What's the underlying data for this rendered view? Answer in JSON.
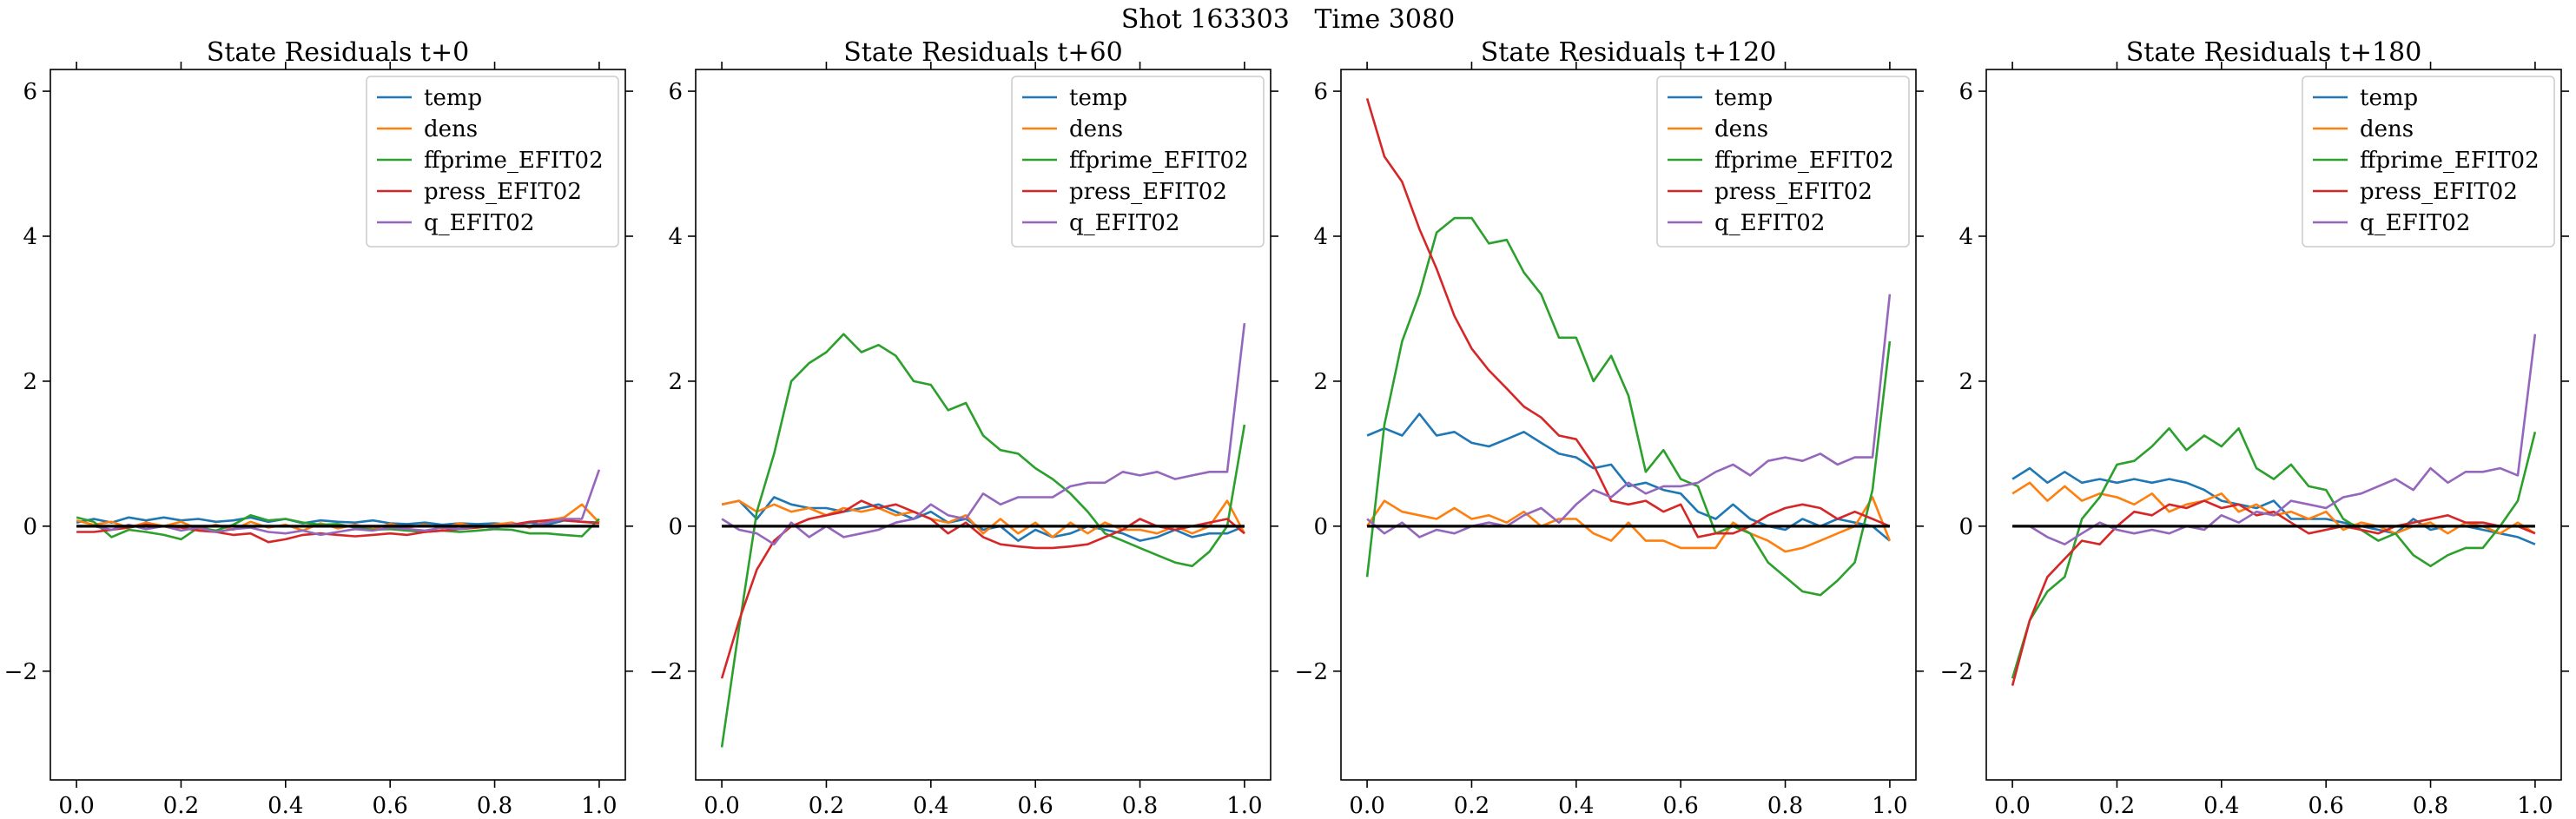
{
  "figure": {
    "title": "Shot 163303   Time 3080"
  },
  "colors": {
    "temp": "#1f77b4",
    "dens": "#ff7f0e",
    "ffprime_EFIT02": "#2ca02c",
    "press_EFIT02": "#d62728",
    "q_EFIT02": "#9467bd",
    "zero_line": "#000000"
  },
  "chart_data": [
    {
      "type": "line",
      "title": "State Residuals t+0",
      "xlim": [
        -0.05,
        1.05
      ],
      "ylim": [
        -3.5,
        6.3
      ],
      "xticks": [
        0.0,
        0.2,
        0.4,
        0.6,
        0.8,
        1.0
      ],
      "xtick_labels": [
        "0.0",
        "0.2",
        "0.4",
        "0.6",
        "0.8",
        "1.0"
      ],
      "yticks": [
        -2,
        0,
        2,
        4,
        6
      ],
      "ytick_labels": [
        "−2",
        "0",
        "2",
        "4",
        "6"
      ],
      "legend_position": "top-right",
      "x": [
        0.0,
        0.033,
        0.067,
        0.1,
        0.133,
        0.167,
        0.2,
        0.233,
        0.267,
        0.3,
        0.333,
        0.367,
        0.4,
        0.433,
        0.467,
        0.5,
        0.533,
        0.567,
        0.6,
        0.633,
        0.667,
        0.7,
        0.733,
        0.767,
        0.8,
        0.833,
        0.867,
        0.9,
        0.933,
        0.967,
        1.0
      ],
      "series": [
        {
          "name": "temp",
          "color": "#1f77b4",
          "values": [
            0.05,
            0.1,
            0.05,
            0.12,
            0.08,
            0.12,
            0.08,
            0.1,
            0.06,
            0.08,
            0.12,
            0.06,
            0.1,
            0.04,
            0.08,
            0.06,
            0.05,
            0.08,
            0.04,
            0.03,
            0.05,
            0.02,
            0.04,
            0.03,
            0.04,
            0.02,
            0.05,
            0.02,
            0.08,
            0.06,
            0.05
          ]
        },
        {
          "name": "dens",
          "color": "#ff7f0e",
          "values": [
            0.08,
            0.02,
            0.06,
            -0.02,
            0.05,
            0.0,
            0.06,
            -0.04,
            0.02,
            -0.05,
            0.06,
            -0.02,
            0.02,
            -0.06,
            0.04,
            -0.03,
            0.02,
            -0.04,
            0.03,
            -0.02,
            0.02,
            -0.03,
            0.04,
            -0.02,
            0.02,
            0.05,
            -0.02,
            0.08,
            0.12,
            0.3,
            0.05
          ]
        },
        {
          "name": "ffprime_EFIT02",
          "color": "#2ca02c",
          "values": [
            0.12,
            0.06,
            -0.15,
            -0.05,
            -0.08,
            -0.12,
            -0.18,
            -0.02,
            -0.06,
            0.02,
            0.15,
            0.08,
            0.1,
            0.05,
            0.02,
            0.03,
            -0.02,
            -0.05,
            -0.04,
            -0.06,
            -0.08,
            -0.06,
            -0.08,
            -0.06,
            -0.04,
            -0.05,
            -0.1,
            -0.1,
            -0.12,
            -0.14,
            0.1
          ]
        },
        {
          "name": "press_EFIT02",
          "color": "#d62728",
          "values": [
            -0.08,
            -0.08,
            -0.05,
            -0.02,
            0.02,
            0.0,
            -0.02,
            -0.06,
            -0.08,
            -0.12,
            -0.1,
            -0.22,
            -0.18,
            -0.12,
            -0.1,
            -0.12,
            -0.14,
            -0.12,
            -0.1,
            -0.12,
            -0.08,
            -0.06,
            -0.04,
            -0.02,
            0.0,
            0.02,
            0.06,
            0.08,
            0.08,
            0.06,
            0.04
          ]
        },
        {
          "name": "q_EFIT02",
          "color": "#9467bd",
          "values": [
            0.0,
            0.0,
            -0.05,
            0.02,
            -0.04,
            0.0,
            -0.06,
            -0.02,
            -0.08,
            -0.04,
            -0.02,
            -0.08,
            -0.1,
            -0.06,
            -0.12,
            -0.08,
            -0.04,
            -0.06,
            -0.02,
            -0.04,
            -0.06,
            -0.02,
            -0.04,
            0.0,
            -0.02,
            0.02,
            0.0,
            0.05,
            0.1,
            0.1,
            0.78
          ]
        }
      ]
    },
    {
      "type": "line",
      "title": "State Residuals t+60",
      "xlim": [
        -0.05,
        1.05
      ],
      "ylim": [
        -3.5,
        6.3
      ],
      "xticks": [
        0.0,
        0.2,
        0.4,
        0.6,
        0.8,
        1.0
      ],
      "xtick_labels": [
        "0.0",
        "0.2",
        "0.4",
        "0.6",
        "0.8",
        "1.0"
      ],
      "yticks": [
        -2,
        0,
        2,
        4,
        6
      ],
      "ytick_labels": [
        "−2",
        "0",
        "2",
        "4",
        "6"
      ],
      "legend_position": "top-right",
      "x": [
        0.0,
        0.033,
        0.067,
        0.1,
        0.133,
        0.167,
        0.2,
        0.233,
        0.267,
        0.3,
        0.333,
        0.367,
        0.4,
        0.433,
        0.467,
        0.5,
        0.533,
        0.567,
        0.6,
        0.633,
        0.667,
        0.7,
        0.733,
        0.767,
        0.8,
        0.833,
        0.867,
        0.9,
        0.933,
        0.967,
        1.0
      ],
      "series": [
        {
          "name": "temp",
          "color": "#1f77b4",
          "values": [
            0.3,
            0.35,
            0.1,
            0.4,
            0.3,
            0.25,
            0.25,
            0.2,
            0.25,
            0.3,
            0.2,
            0.1,
            0.2,
            0.05,
            0.1,
            -0.05,
            0.0,
            -0.2,
            -0.05,
            -0.15,
            -0.1,
            0.0,
            -0.05,
            -0.1,
            -0.2,
            -0.15,
            -0.05,
            -0.15,
            -0.1,
            -0.1,
            0.0
          ]
        },
        {
          "name": "dens",
          "color": "#ff7f0e",
          "values": [
            0.3,
            0.35,
            0.2,
            0.3,
            0.2,
            0.25,
            0.15,
            0.25,
            0.2,
            0.25,
            0.15,
            0.2,
            0.1,
            0.05,
            0.15,
            -0.1,
            0.1,
            -0.1,
            0.05,
            -0.15,
            0.05,
            -0.1,
            0.05,
            -0.05,
            -0.05,
            -0.1,
            0.0,
            -0.1,
            0.0,
            0.35,
            -0.1
          ]
        },
        {
          "name": "ffprime_EFIT02",
          "color": "#2ca02c",
          "values": [
            -3.05,
            -1.4,
            0.2,
            1.0,
            2.0,
            2.25,
            2.4,
            2.65,
            2.4,
            2.5,
            2.35,
            2.0,
            1.95,
            1.6,
            1.7,
            1.25,
            1.05,
            1.0,
            0.8,
            0.65,
            0.45,
            0.2,
            -0.1,
            -0.2,
            -0.3,
            -0.4,
            -0.5,
            -0.55,
            -0.35,
            0.0,
            1.4
          ]
        },
        {
          "name": "press_EFIT02",
          "color": "#d62728",
          "values": [
            -2.1,
            -1.3,
            -0.6,
            -0.2,
            0.0,
            0.1,
            0.15,
            0.2,
            0.35,
            0.25,
            0.3,
            0.2,
            0.1,
            -0.1,
            0.05,
            -0.15,
            -0.25,
            -0.28,
            -0.3,
            -0.3,
            -0.28,
            -0.25,
            -0.15,
            -0.05,
            0.1,
            0.0,
            -0.05,
            0.0,
            0.05,
            0.1,
            -0.1
          ]
        },
        {
          "name": "q_EFIT02",
          "color": "#9467bd",
          "values": [
            0.1,
            -0.05,
            -0.1,
            -0.25,
            0.05,
            -0.15,
            0.0,
            -0.15,
            -0.1,
            -0.05,
            0.05,
            0.1,
            0.3,
            0.15,
            0.1,
            0.45,
            0.3,
            0.4,
            0.4,
            0.4,
            0.55,
            0.6,
            0.6,
            0.75,
            0.7,
            0.75,
            0.65,
            0.7,
            0.75,
            0.75,
            2.8
          ]
        }
      ]
    },
    {
      "type": "line",
      "title": "State Residuals t+120",
      "xlim": [
        -0.05,
        1.05
      ],
      "ylim": [
        -3.5,
        6.3
      ],
      "xticks": [
        0.0,
        0.2,
        0.4,
        0.6,
        0.8,
        1.0
      ],
      "xtick_labels": [
        "0.0",
        "0.2",
        "0.4",
        "0.6",
        "0.8",
        "1.0"
      ],
      "yticks": [
        -2,
        0,
        2,
        4,
        6
      ],
      "ytick_labels": [
        "−2",
        "0",
        "2",
        "4",
        "6"
      ],
      "legend_position": "top-right",
      "x": [
        0.0,
        0.033,
        0.067,
        0.1,
        0.133,
        0.167,
        0.2,
        0.233,
        0.267,
        0.3,
        0.333,
        0.367,
        0.4,
        0.433,
        0.467,
        0.5,
        0.533,
        0.567,
        0.6,
        0.633,
        0.667,
        0.7,
        0.733,
        0.767,
        0.8,
        0.833,
        0.867,
        0.9,
        0.933,
        0.967,
        1.0
      ],
      "series": [
        {
          "name": "temp",
          "color": "#1f77b4",
          "values": [
            1.25,
            1.35,
            1.25,
            1.55,
            1.25,
            1.3,
            1.15,
            1.1,
            1.2,
            1.3,
            1.15,
            1.0,
            0.95,
            0.8,
            0.85,
            0.55,
            0.6,
            0.5,
            0.45,
            0.2,
            0.1,
            0.3,
            0.1,
            0.0,
            -0.05,
            0.1,
            0.0,
            0.1,
            0.05,
            0.0,
            -0.2
          ]
        },
        {
          "name": "dens",
          "color": "#ff7f0e",
          "values": [
            0.0,
            0.35,
            0.2,
            0.15,
            0.1,
            0.25,
            0.1,
            0.15,
            0.05,
            0.2,
            0.0,
            0.1,
            0.1,
            -0.1,
            -0.2,
            0.05,
            -0.2,
            -0.2,
            -0.3,
            -0.3,
            -0.3,
            0.05,
            -0.1,
            -0.2,
            -0.35,
            -0.3,
            -0.2,
            -0.1,
            0.0,
            0.4,
            -0.2
          ]
        },
        {
          "name": "ffprime_EFIT02",
          "color": "#2ca02c",
          "values": [
            -0.7,
            1.4,
            2.55,
            3.2,
            4.05,
            4.25,
            4.25,
            3.9,
            3.95,
            3.5,
            3.2,
            2.6,
            2.6,
            2.0,
            2.35,
            1.8,
            0.75,
            1.05,
            0.65,
            0.55,
            -0.1,
            0.0,
            -0.1,
            -0.5,
            -0.7,
            -0.9,
            -0.95,
            -0.75,
            -0.5,
            0.5,
            2.55
          ]
        },
        {
          "name": "press_EFIT02",
          "color": "#d62728",
          "values": [
            5.9,
            5.1,
            4.75,
            4.1,
            3.55,
            2.9,
            2.45,
            2.15,
            1.9,
            1.65,
            1.5,
            1.25,
            1.2,
            0.85,
            0.35,
            0.3,
            0.35,
            0.2,
            0.3,
            -0.15,
            -0.1,
            -0.1,
            0.0,
            0.15,
            0.25,
            0.3,
            0.25,
            0.1,
            0.2,
            0.1,
            0.0
          ]
        },
        {
          "name": "q_EFIT02",
          "color": "#9467bd",
          "values": [
            0.1,
            -0.1,
            0.05,
            -0.15,
            -0.05,
            -0.1,
            0.0,
            0.05,
            0.0,
            0.15,
            0.25,
            0.05,
            0.3,
            0.5,
            0.4,
            0.6,
            0.45,
            0.55,
            0.55,
            0.6,
            0.75,
            0.85,
            0.7,
            0.9,
            0.95,
            0.9,
            1.0,
            0.85,
            0.95,
            0.95,
            3.2
          ]
        }
      ]
    },
    {
      "type": "line",
      "title": "State Residuals t+180",
      "xlim": [
        -0.05,
        1.05
      ],
      "ylim": [
        -3.5,
        6.3
      ],
      "xticks": [
        0.0,
        0.2,
        0.4,
        0.6,
        0.8,
        1.0
      ],
      "xtick_labels": [
        "0.0",
        "0.2",
        "0.4",
        "0.6",
        "0.8",
        "1.0"
      ],
      "yticks": [
        -2,
        0,
        2,
        4,
        6
      ],
      "ytick_labels": [
        "−2",
        "0",
        "2",
        "4",
        "6"
      ],
      "legend_position": "top-right",
      "x": [
        0.0,
        0.033,
        0.067,
        0.1,
        0.133,
        0.167,
        0.2,
        0.233,
        0.267,
        0.3,
        0.333,
        0.367,
        0.4,
        0.433,
        0.467,
        0.5,
        0.533,
        0.567,
        0.6,
        0.633,
        0.667,
        0.7,
        0.733,
        0.767,
        0.8,
        0.833,
        0.867,
        0.9,
        0.933,
        0.967,
        1.0
      ],
      "series": [
        {
          "name": "temp",
          "color": "#1f77b4",
          "values": [
            0.65,
            0.8,
            0.6,
            0.75,
            0.6,
            0.65,
            0.6,
            0.65,
            0.6,
            0.65,
            0.6,
            0.5,
            0.35,
            0.3,
            0.25,
            0.35,
            0.1,
            0.1,
            0.1,
            0.05,
            0.0,
            -0.05,
            -0.1,
            0.1,
            -0.05,
            0.0,
            0.0,
            -0.05,
            -0.1,
            -0.15,
            -0.25
          ]
        },
        {
          "name": "dens",
          "color": "#ff7f0e",
          "values": [
            0.45,
            0.6,
            0.35,
            0.55,
            0.35,
            0.45,
            0.4,
            0.3,
            0.45,
            0.2,
            0.3,
            0.35,
            0.45,
            0.2,
            0.3,
            0.15,
            0.2,
            0.1,
            0.2,
            -0.05,
            0.05,
            0.0,
            -0.1,
            0.0,
            0.05,
            -0.1,
            0.05,
            0.0,
            -0.1,
            0.05,
            -0.1
          ]
        },
        {
          "name": "ffprime_EFIT02",
          "color": "#2ca02c",
          "values": [
            -2.1,
            -1.3,
            -0.9,
            -0.7,
            0.1,
            0.4,
            0.85,
            0.9,
            1.1,
            1.35,
            1.05,
            1.25,
            1.1,
            1.35,
            0.8,
            0.65,
            0.85,
            0.55,
            0.5,
            0.1,
            -0.05,
            -0.2,
            -0.1,
            -0.4,
            -0.55,
            -0.4,
            -0.3,
            -0.3,
            0.0,
            0.35,
            1.3
          ]
        },
        {
          "name": "press_EFIT02",
          "color": "#d62728",
          "values": [
            -2.2,
            -1.3,
            -0.7,
            -0.45,
            -0.2,
            -0.25,
            0.0,
            0.2,
            0.15,
            0.3,
            0.25,
            0.35,
            0.25,
            0.3,
            0.15,
            0.2,
            0.05,
            -0.1,
            -0.05,
            0.0,
            -0.05,
            -0.1,
            0.0,
            0.05,
            0.1,
            0.15,
            0.05,
            0.05,
            0.0,
            0.0,
            -0.1
          ]
        },
        {
          "name": "q_EFIT02",
          "color": "#9467bd",
          "values": [
            0.0,
            0.0,
            -0.15,
            -0.25,
            -0.1,
            0.05,
            -0.05,
            -0.1,
            -0.05,
            -0.1,
            0.0,
            -0.05,
            0.15,
            0.05,
            0.2,
            0.15,
            0.35,
            0.3,
            0.25,
            0.4,
            0.45,
            0.55,
            0.65,
            0.5,
            0.8,
            0.6,
            0.75,
            0.75,
            0.8,
            0.7,
            2.65
          ]
        }
      ]
    }
  ]
}
